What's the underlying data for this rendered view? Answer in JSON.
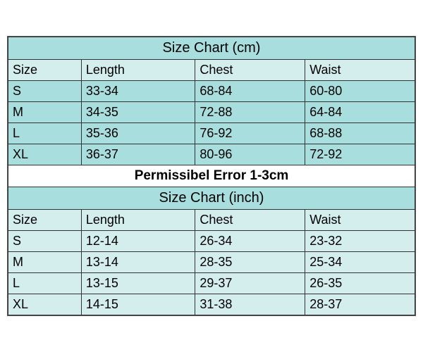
{
  "cm": {
    "title": "Size Chart (cm)",
    "title_bg": "#a9dede",
    "header_bg": "#d4eeee",
    "row_bg": "#a9dede",
    "columns": [
      "Size",
      "Length",
      "Chest",
      "Waist"
    ],
    "rows": [
      [
        "S",
        "33-34",
        "68-84",
        "60-80"
      ],
      [
        "M",
        "34-35",
        "72-88",
        "64-84"
      ],
      [
        "L",
        "35-36",
        "76-92",
        "68-88"
      ],
      [
        "XL",
        "36-37",
        "80-96",
        "72-92"
      ]
    ]
  },
  "error_note": "Permissibel Error 1-3cm",
  "inch": {
    "title": "Size Chart (inch)",
    "title_bg": "#a9dede",
    "header_bg": "#d4eeee",
    "row_bg": "#d4eeee",
    "columns": [
      "Size",
      "Length",
      "Chest",
      "Waist"
    ],
    "rows": [
      [
        "S",
        "12-14",
        "26-34",
        "23-32"
      ],
      [
        "M",
        "13-14",
        "28-35",
        "25-34"
      ],
      [
        "L",
        "13-15",
        "29-37",
        "26-35"
      ],
      [
        "XL",
        "14-15",
        "31-38",
        "28-37"
      ]
    ]
  },
  "colors": {
    "border": "#333333",
    "background": "#ffffff",
    "teal_dark": "#a9dede",
    "teal_light": "#d4eeee"
  },
  "font": {
    "family": "Arial",
    "base_size_pt": 14,
    "title_size_pt": 16
  },
  "col_widths_pct": [
    18,
    28,
    27,
    27
  ]
}
